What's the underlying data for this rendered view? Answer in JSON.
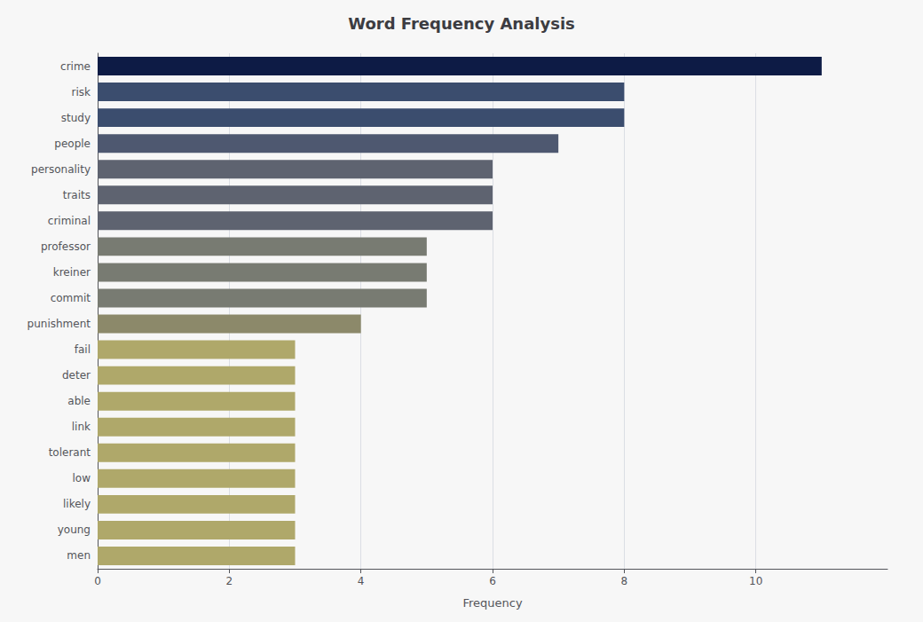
{
  "chart_data": {
    "type": "bar",
    "orientation": "horizontal",
    "title": "Word Frequency Analysis",
    "xlabel": "Frequency",
    "categories": [
      "crime",
      "risk",
      "study",
      "people",
      "personality",
      "traits",
      "criminal",
      "professor",
      "kreiner",
      "commit",
      "punishment",
      "fail",
      "deter",
      "able",
      "link",
      "tolerant",
      "low",
      "likely",
      "young",
      "men"
    ],
    "values": [
      11,
      8,
      8,
      7,
      6,
      6,
      6,
      5,
      5,
      5,
      4,
      3,
      3,
      3,
      3,
      3,
      3,
      3,
      3,
      3
    ],
    "colors": [
      "#0d1b45",
      "#3b4d6e",
      "#3b4d6e",
      "#4e5870",
      "#5e6370",
      "#5e6370",
      "#5e6370",
      "#787b72",
      "#787b72",
      "#787b72",
      "#8c896a",
      "#afa86a",
      "#afa86a",
      "#afa86a",
      "#afa86a",
      "#afa86a",
      "#afa86a",
      "#afa86a",
      "#afa86a",
      "#afa86a"
    ],
    "xlim": [
      0,
      12
    ],
    "xticks": [
      0,
      2,
      4,
      6,
      8,
      10
    ],
    "grid": true
  }
}
